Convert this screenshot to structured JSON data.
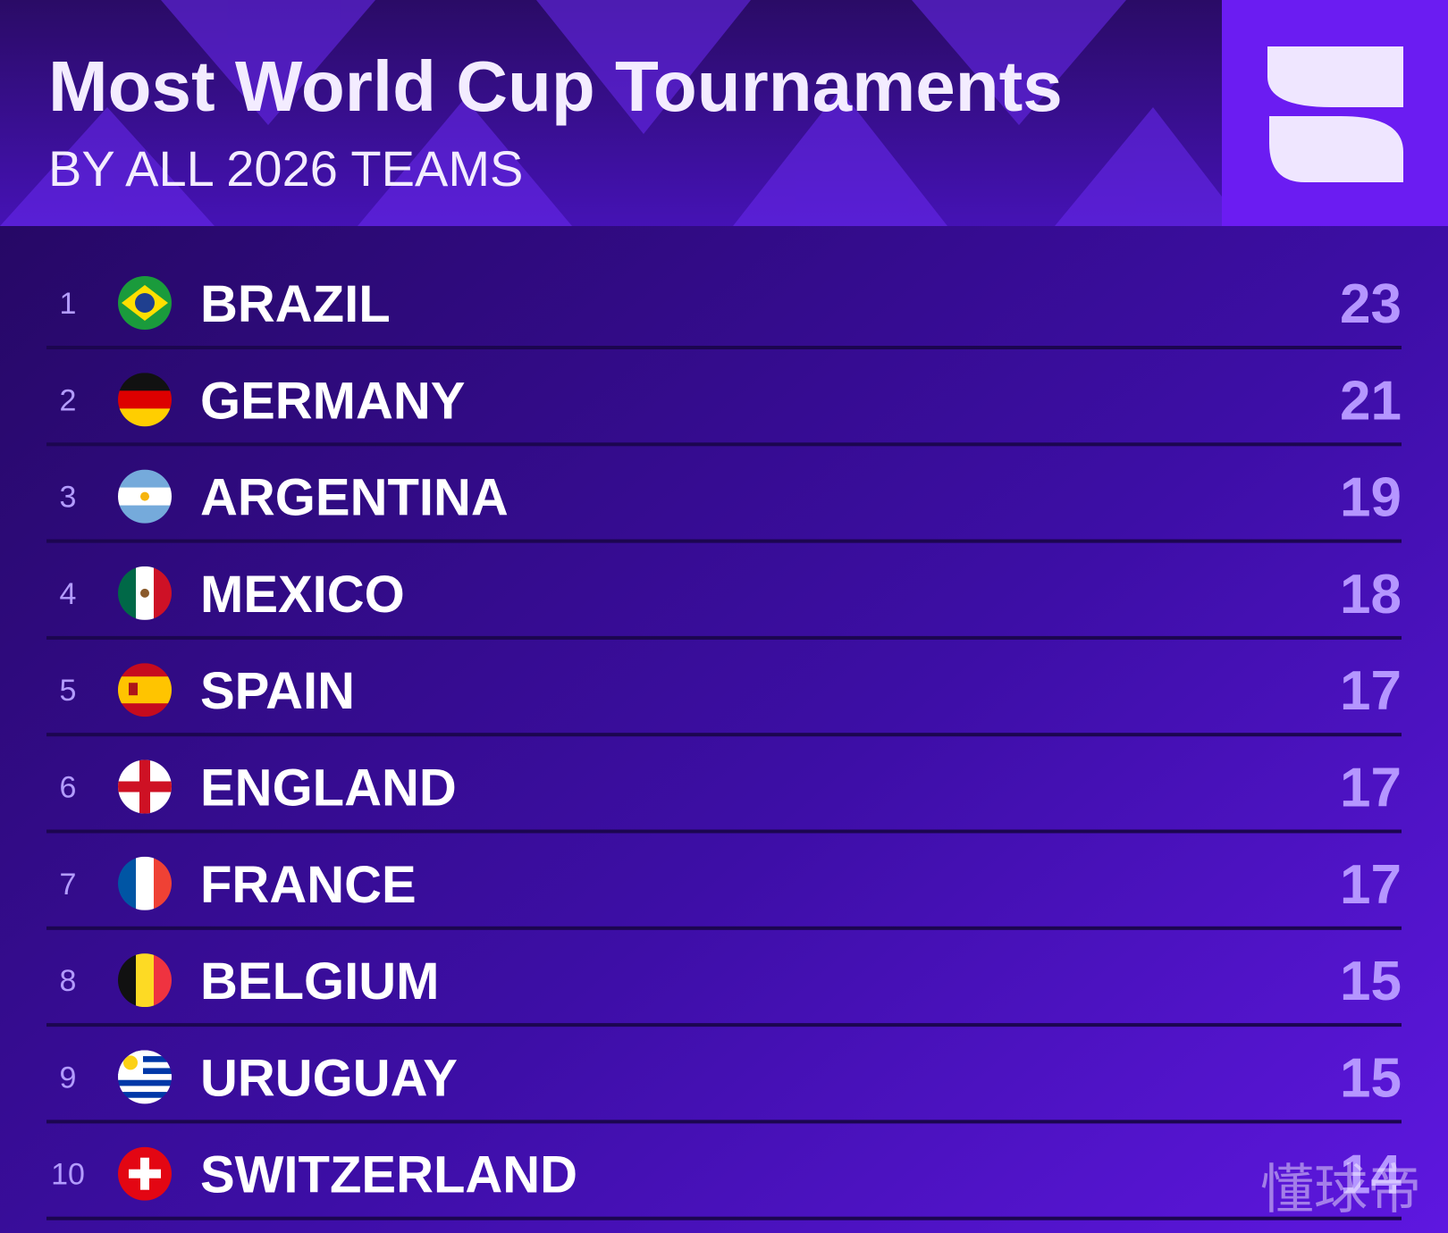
{
  "header": {
    "title": "Most World Cup Tournaments",
    "subtitle": "BY ALL 2026 TEAMS"
  },
  "table": {
    "rows": [
      {
        "rank": 1,
        "country": "BRAZIL",
        "value": 23
      },
      {
        "rank": 2,
        "country": "GERMANY",
        "value": 21
      },
      {
        "rank": 3,
        "country": "ARGENTINA",
        "value": 19
      },
      {
        "rank": 4,
        "country": "MEXICO",
        "value": 18
      },
      {
        "rank": 5,
        "country": "SPAIN",
        "value": 17
      },
      {
        "rank": 6,
        "country": "ENGLAND",
        "value": 17
      },
      {
        "rank": 7,
        "country": "FRANCE",
        "value": 17
      },
      {
        "rank": 8,
        "country": "BELGIUM",
        "value": 15
      },
      {
        "rank": 9,
        "country": "URUGUAY",
        "value": 15
      },
      {
        "rank": 10,
        "country": "SWITZERLAND",
        "value": 14
      }
    ]
  },
  "watermark": "懂球帝"
}
